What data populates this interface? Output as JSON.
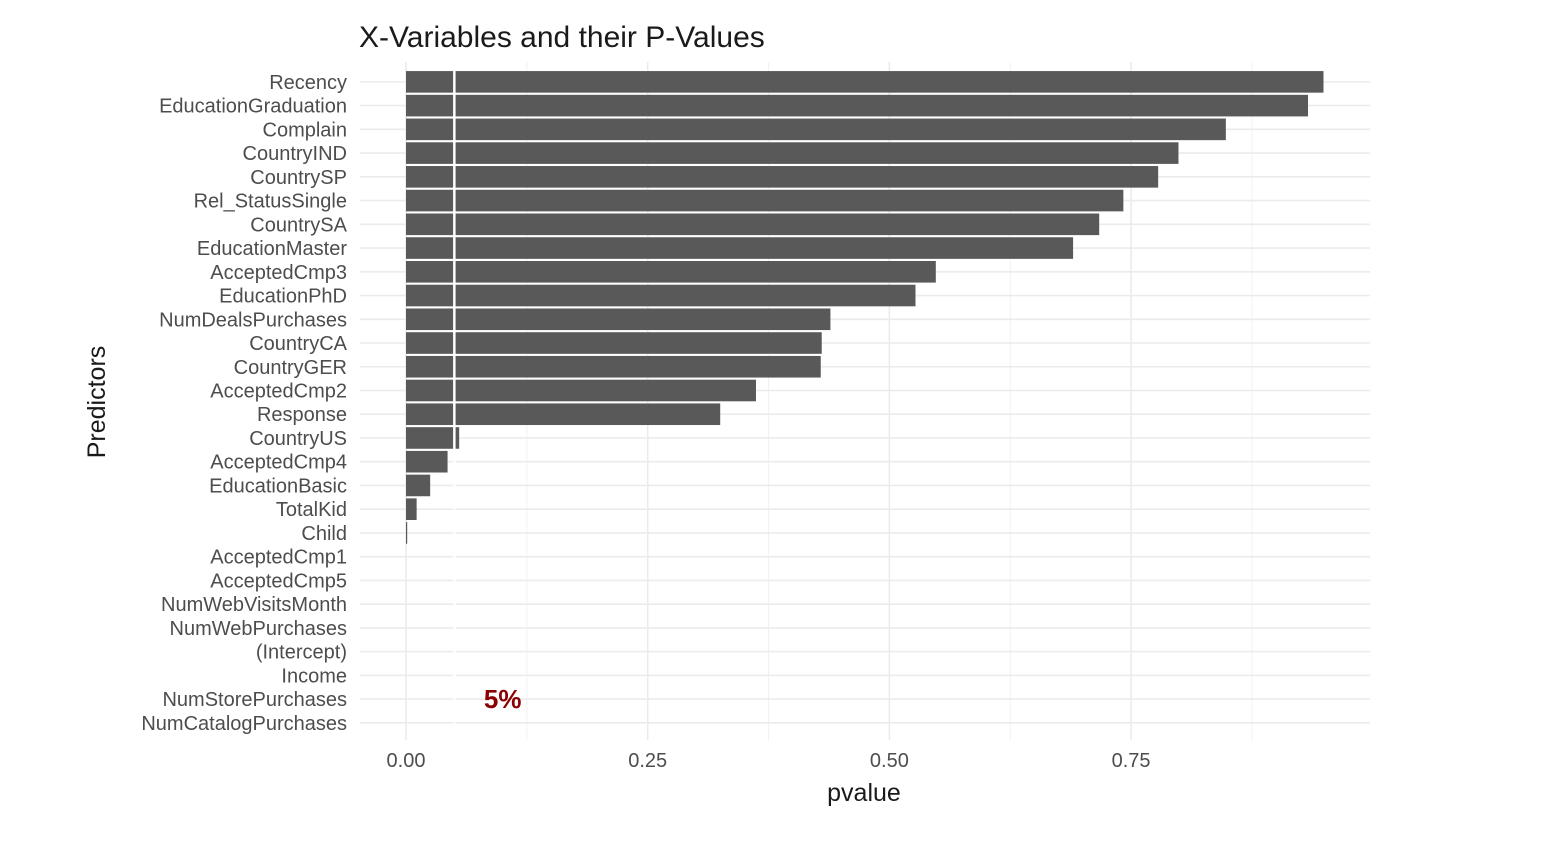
{
  "chart_data": {
    "type": "bar",
    "orientation": "horizontal",
    "title": "X-Variables and their P-Values",
    "xlabel": "pvalue",
    "ylabel": "Predictors",
    "xlim": [
      0,
      0.95
    ],
    "x_ticks": [
      0.0,
      0.25,
      0.5,
      0.75
    ],
    "x_tick_labels": [
      "0.00",
      "0.25",
      "0.50",
      "0.75"
    ],
    "grid": true,
    "legend": "none",
    "bar_color": "#595959",
    "reference_line": {
      "value": 0.05,
      "color": "#ffffff"
    },
    "annotation": {
      "text": "5%",
      "x": 0.1,
      "y": "NumStorePurchases",
      "color": "#8b0000"
    },
    "categories": [
      "Recency",
      "EducationGraduation",
      "Complain",
      "CountryIND",
      "CountrySP",
      "Rel_StatusSingle",
      "CountrySA",
      "EducationMaster",
      "AcceptedCmp3",
      "EducationPhD",
      "NumDealsPurchases",
      "CountryCA",
      "CountryGER",
      "AcceptedCmp2",
      "Response",
      "CountryUS",
      "AcceptedCmp4",
      "EducationBasic",
      "TotalKid",
      "Child",
      "AcceptedCmp1",
      "AcceptedCmp5",
      "NumWebVisitsMonth",
      "NumWebPurchases",
      "(Intercept)",
      "Income",
      "NumStorePurchases",
      "NumCatalogPurchases"
    ],
    "values": [
      0.949,
      0.933,
      0.848,
      0.799,
      0.778,
      0.742,
      0.717,
      0.69,
      0.548,
      0.527,
      0.439,
      0.43,
      0.429,
      0.362,
      0.325,
      0.055,
      0.043,
      0.025,
      0.011,
      0.001,
      0.0,
      0.0,
      0.0,
      0.0,
      0.0,
      0.0,
      0.0,
      0.0
    ]
  }
}
